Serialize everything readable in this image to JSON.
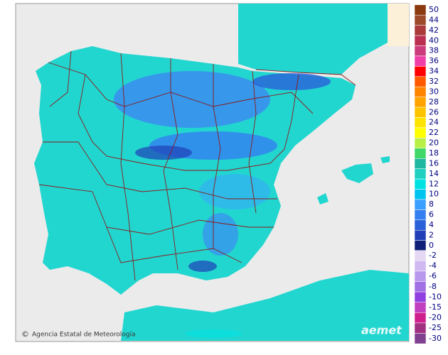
{
  "footer": {
    "agency": "Agencia Estatal de Meteorología",
    "logo": "aemet"
  },
  "legend": {
    "positive": [
      {
        "value": 50,
        "color": "#8b3a0f"
      },
      {
        "value": 44,
        "color": "#9c4a2a"
      },
      {
        "value": 42,
        "color": "#ab3a3a"
      },
      {
        "value": 40,
        "color": "#bb3050"
      },
      {
        "value": 38,
        "color": "#cc3c7c"
      },
      {
        "value": 36,
        "color": "#f040a8"
      },
      {
        "value": 34,
        "color": "#ff0000"
      },
      {
        "value": 32,
        "color": "#ff5a00"
      },
      {
        "value": 30,
        "color": "#ff8400"
      },
      {
        "value": 28,
        "color": "#ffa400"
      },
      {
        "value": 26,
        "color": "#ffc400"
      },
      {
        "value": 24,
        "color": "#ffe400"
      },
      {
        "value": 22,
        "color": "#ffff00"
      },
      {
        "value": 20,
        "color": "#b8f048"
      },
      {
        "value": 18,
        "color": "#40d868"
      },
      {
        "value": 16,
        "color": "#20b8a0"
      },
      {
        "value": 14,
        "color": "#20d0c0"
      },
      {
        "value": 12,
        "color": "#00e2e2"
      },
      {
        "value": 10,
        "color": "#00c4f0"
      },
      {
        "value": 8,
        "color": "#3aa0ff"
      },
      {
        "value": 6,
        "color": "#3480f0"
      },
      {
        "value": 4,
        "color": "#2a60d8"
      },
      {
        "value": 2,
        "color": "#2040b8"
      },
      {
        "value": 0,
        "color": "#102078"
      }
    ],
    "negative": [
      {
        "value": -2,
        "color": "#e4d8f4"
      },
      {
        "value": -4,
        "color": "#d0b8f0"
      },
      {
        "value": -6,
        "color": "#b898ec"
      },
      {
        "value": -8,
        "color": "#a070e4"
      },
      {
        "value": -10,
        "color": "#9040e0"
      },
      {
        "value": -15,
        "color": "#c040c0"
      },
      {
        "value": -20,
        "color": "#d02090"
      },
      {
        "value": -25,
        "color": "#a03080"
      },
      {
        "value": -30,
        "color": "#804090"
      }
    ]
  }
}
